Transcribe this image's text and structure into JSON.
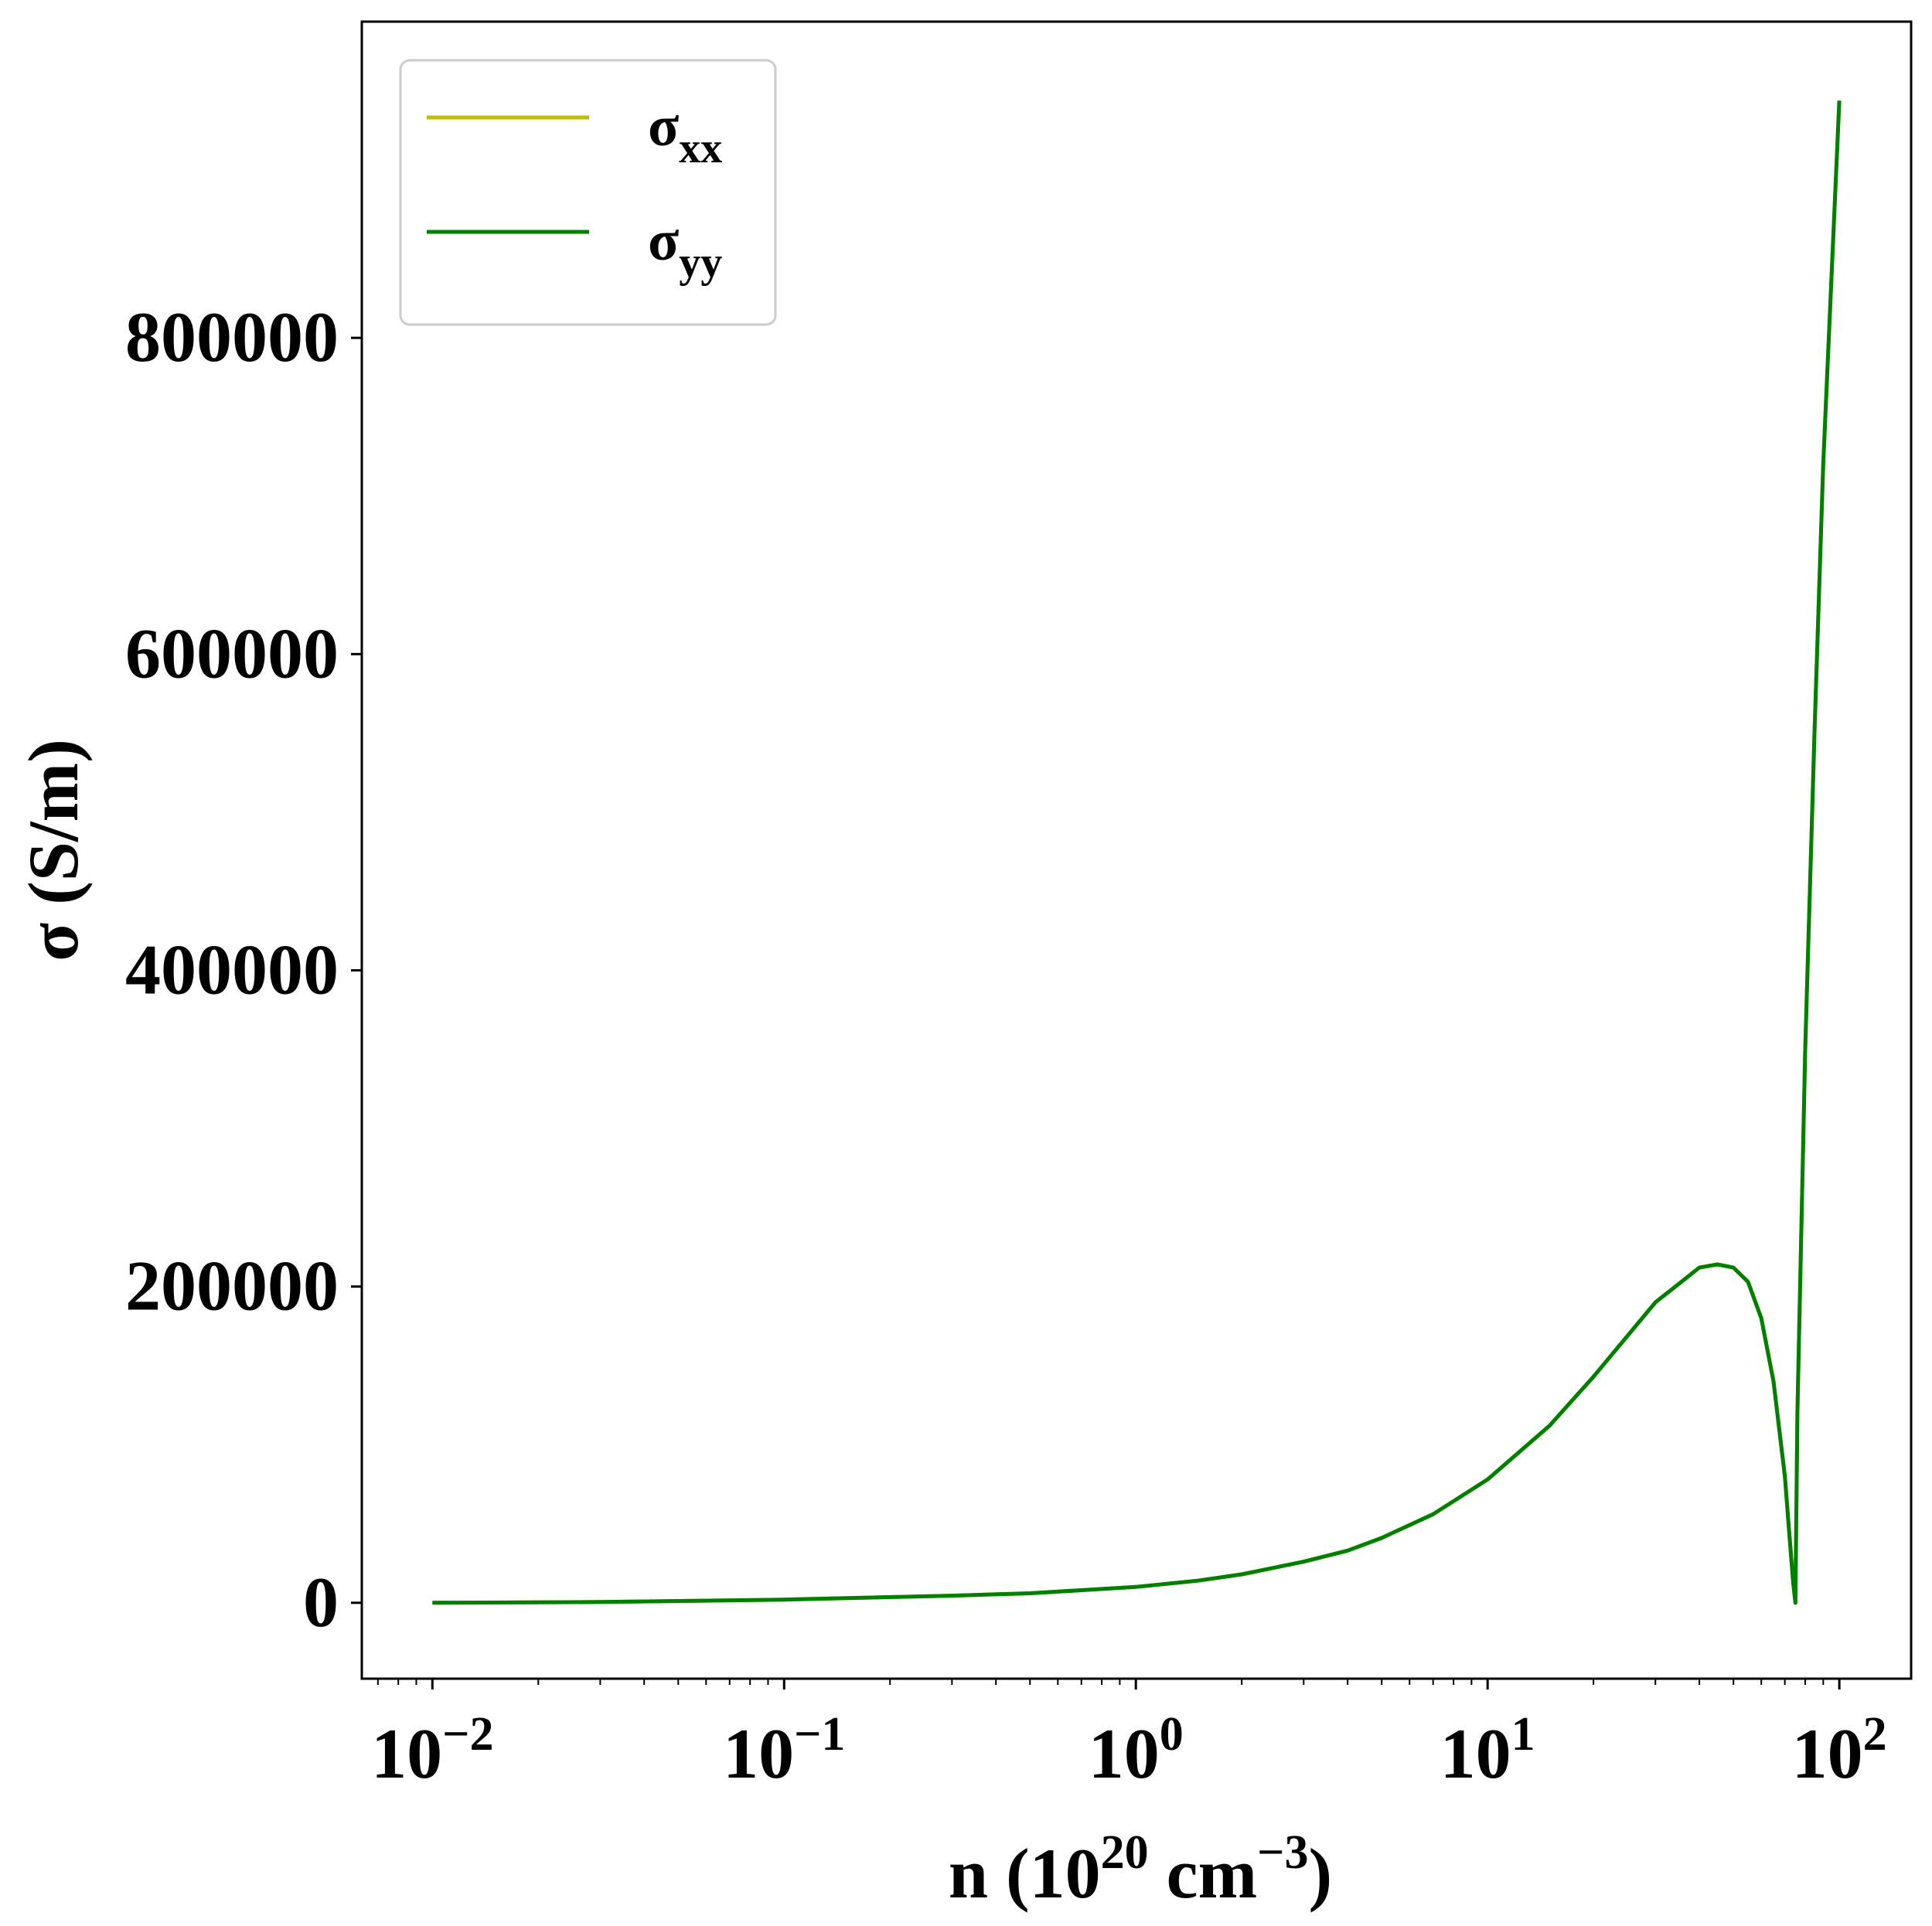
{
  "chart_data": {
    "type": "line",
    "xlabel": {
      "base": "n (10",
      "exp1": "20",
      "mid": " cm",
      "exp2": "−3",
      "end": ")"
    },
    "ylabel": "σ (S/m)",
    "xscale": "log",
    "xlim": [
      0.0063,
      160
    ],
    "ylim": [
      -48000,
      1000000
    ],
    "xticks": [
      {
        "value": 0.01,
        "base": "10",
        "exp": "−2"
      },
      {
        "value": 0.1,
        "base": "10",
        "exp": "−1"
      },
      {
        "value": 1,
        "base": "10",
        "exp": "0"
      },
      {
        "value": 10,
        "base": "10",
        "exp": "1"
      },
      {
        "value": 100,
        "base": "10",
        "exp": "2"
      }
    ],
    "yticks": [
      {
        "value": 0,
        "label": "0"
      },
      {
        "value": 200000,
        "label": "200000"
      },
      {
        "value": 400000,
        "label": "400000"
      },
      {
        "value": 600000,
        "label": "600000"
      },
      {
        "value": 800000,
        "label": "800000"
      }
    ],
    "grid": false,
    "legend_position": "upper-left",
    "series": [
      {
        "name": "σ",
        "sub": "xx",
        "color": "#bfbf00",
        "x": [
          0.01,
          0.03,
          0.1,
          0.3,
          0.5,
          1,
          1.5,
          2,
          3,
          4,
          5,
          7,
          10,
          15,
          20,
          30,
          40,
          45,
          50,
          55,
          60,
          65,
          70,
          72,
          74,
          75,
          76,
          80,
          85,
          90,
          100
        ],
        "y": [
          0,
          500,
          2000,
          4500,
          6000,
          10000,
          14000,
          18000,
          26000,
          33000,
          41000,
          56000,
          78000,
          112000,
          143000,
          190000,
          212000,
          214000,
          212000,
          203000,
          180000,
          140000,
          80000,
          45000,
          12000,
          0,
          120000,
          350000,
          550000,
          720000,
          950000
        ]
      },
      {
        "name": "σ",
        "sub": "yy",
        "color": "#008000",
        "x": [
          0.01,
          0.03,
          0.1,
          0.3,
          0.5,
          1,
          1.5,
          2,
          3,
          4,
          5,
          7,
          10,
          15,
          20,
          30,
          40,
          45,
          50,
          55,
          60,
          65,
          70,
          72,
          74,
          75,
          76,
          80,
          85,
          90,
          100
        ],
        "y": [
          0,
          500,
          2000,
          4500,
          6000,
          10000,
          14000,
          18000,
          26000,
          33000,
          41000,
          56000,
          78000,
          112000,
          143000,
          190000,
          212000,
          214000,
          212000,
          203000,
          180000,
          140000,
          80000,
          45000,
          12000,
          0,
          120000,
          350000,
          550000,
          720000,
          950000
        ]
      }
    ]
  }
}
